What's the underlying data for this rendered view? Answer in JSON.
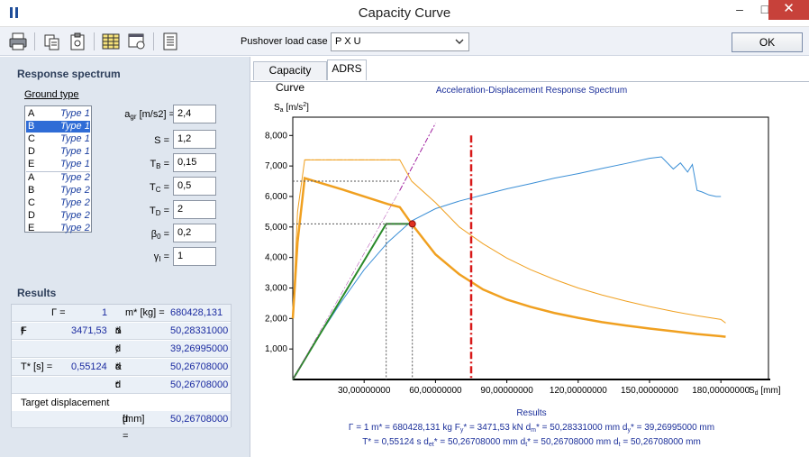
{
  "window": {
    "title": "Capacity Curve",
    "minimize": "–",
    "maximize": "□",
    "close": "✕"
  },
  "toolbar": {
    "icons": [
      "printer-icon",
      "copy-icon",
      "clipboard-icon",
      "table-icon",
      "image-export-icon",
      "report-icon"
    ],
    "pushover_label": "Pushover load case",
    "pushover_value": "P X U",
    "ok_label": "OK"
  },
  "response_spectrum": {
    "title": "Response spectrum",
    "ground_type_label": "Ground type",
    "ground_types": [
      {
        "code": "A",
        "type": "Type 1"
      },
      {
        "code": "B",
        "type": "Type 1"
      },
      {
        "code": "C",
        "type": "Type 1"
      },
      {
        "code": "D",
        "type": "Type 1"
      },
      {
        "code": "E",
        "type": "Type 1"
      },
      {
        "code": "A",
        "type": "Type 2"
      },
      {
        "code": "B",
        "type": "Type 2"
      },
      {
        "code": "C",
        "type": "Type 2"
      },
      {
        "code": "D",
        "type": "Type 2"
      },
      {
        "code": "E",
        "type": "Type 2"
      }
    ],
    "selected_index": 1,
    "params": {
      "agr": {
        "label": "a",
        "sub": "gr",
        "unit": "[m/s2] =",
        "value": "2,4"
      },
      "S": {
        "label": "S =",
        "value": "1,2"
      },
      "TB": {
        "label": "T",
        "sub": "B",
        "eq": " =",
        "value": "0,15"
      },
      "TC": {
        "label": "T",
        "sub": "C",
        "eq": " =",
        "value": "0,5"
      },
      "TD": {
        "label": "T",
        "sub": "D",
        "eq": " =",
        "value": "2"
      },
      "beta0": {
        "label": "β",
        "sub": "0",
        "eq": " =",
        "value": "0,2"
      },
      "gammaI": {
        "label": "γ",
        "sub": "I",
        "eq": " =",
        "value": "1"
      }
    }
  },
  "results": {
    "title": "Results",
    "gamma_label": "Γ =",
    "gamma_value": "1",
    "m_label": "m* [kg] =",
    "m_value": "680428,131",
    "fy_label": "F",
    "fy_sub": "y",
    "fy_unit": "* [kN] =",
    "fy_value": "3471,53",
    "dm_label": "d",
    "dm_sub": "m",
    "dm_unit": "* [mm] =",
    "dm_value": "50,28331000",
    "dy_label": "d",
    "dy_sub": "y",
    "dy_unit": "* [mm] =",
    "dy_value": "39,26995000",
    "T_label": "T* [s] =",
    "T_value": "0,55124",
    "det_label": "d",
    "det_sub": "et",
    "det_unit": "* [mm] =",
    "det_value": "50,26708000",
    "dt_star_label": "d",
    "dt_star_sub": "t",
    "dt_star_unit": "* [mm] =",
    "dt_star_value": "50,26708000",
    "target_label": "Target displacement",
    "dt_label": "d",
    "dt_sub": "t",
    "dt_unit": " [mm] =",
    "dt_value": "50,26708000"
  },
  "tabs": [
    {
      "label": "Capacity Curve",
      "active": false
    },
    {
      "label": "ADRS",
      "active": true
    }
  ],
  "chart_data": {
    "type": "line",
    "title": "Acceleration-Displacement Response Spectrum",
    "xlabel": "S",
    "xlabel_sub": "d",
    "xlabel_unit": " [mm]",
    "ylabel": "S",
    "ylabel_sub": "a",
    "ylabel_unit": " [m/s",
    "ylabel_sup": "2",
    "ylabel_close": "]",
    "xlim": [
      0,
      200
    ],
    "ylim": [
      0,
      8.6
    ],
    "x_ticks": [
      {
        "v": 30,
        "label": "30,00000000"
      },
      {
        "v": 60,
        "label": "60,00000000"
      },
      {
        "v": 90,
        "label": "90,00000000"
      },
      {
        "v": 120,
        "label": "120,00000000"
      },
      {
        "v": 150,
        "label": "150,00000000"
      },
      {
        "v": 180,
        "label": "180,00000000"
      }
    ],
    "y_ticks": [
      {
        "v": 1,
        "label": "1,000"
      },
      {
        "v": 2,
        "label": "2,000"
      },
      {
        "v": 3,
        "label": "3,000"
      },
      {
        "v": 4,
        "label": "4,000"
      },
      {
        "v": 5,
        "label": "5,000"
      },
      {
        "v": 6,
        "label": "6,000"
      },
      {
        "v": 7,
        "label": "7,000"
      },
      {
        "v": 8,
        "label": "8,000"
      }
    ],
    "series": [
      {
        "kind": "capacity",
        "color": "#3b8fd6",
        "x": [
          0,
          10,
          20,
          30,
          40,
          50,
          60,
          70,
          80,
          90,
          100,
          110,
          120,
          130,
          140,
          150,
          155,
          160,
          163,
          166,
          168,
          170,
          172,
          175,
          178,
          180
        ],
        "y": [
          0,
          1.3,
          2.5,
          3.6,
          4.5,
          5.2,
          5.6,
          5.85,
          6.05,
          6.25,
          6.42,
          6.6,
          6.75,
          6.92,
          7.08,
          7.25,
          7.3,
          6.9,
          7.1,
          6.8,
          7.05,
          6.2,
          6.15,
          6.05,
          6.0,
          6.0
        ]
      },
      {
        "kind": "spectrum-elastic",
        "color": "#f0a020",
        "x": [
          0,
          2,
          5,
          20,
          40,
          45,
          50,
          55,
          60,
          70,
          80,
          90,
          100,
          110,
          120,
          130,
          140,
          150,
          160,
          170,
          180,
          182
        ],
        "y": [
          2.0,
          4.5,
          6.6,
          6.25,
          5.75,
          5.65,
          5.1,
          4.6,
          4.1,
          3.45,
          2.95,
          2.62,
          2.38,
          2.18,
          2.02,
          1.88,
          1.77,
          1.67,
          1.58,
          1.49,
          1.42,
          1.4
        ]
      },
      {
        "kind": "spectrum-design",
        "color": "#f0a020",
        "x": [
          0,
          2,
          5,
          20,
          45,
          50,
          60,
          70,
          80,
          90,
          100,
          110,
          120,
          130,
          140,
          150,
          160,
          170,
          180,
          182
        ],
        "y": [
          2.0,
          5.5,
          7.2,
          7.2,
          7.2,
          6.5,
          5.8,
          5.0,
          4.45,
          3.98,
          3.6,
          3.28,
          3.0,
          2.77,
          2.57,
          2.39,
          2.23,
          2.09,
          1.97,
          1.85
        ]
      },
      {
        "kind": "bilinear",
        "color": "#2a8a2a",
        "x": [
          0,
          39.26995,
          50.28331
        ],
        "y": [
          0,
          5.1,
          5.1
        ]
      }
    ],
    "target_displacement": 50.26708,
    "performance_point": {
      "x": 50.26708,
      "y": 5.1
    },
    "limit_line_x": 75,
    "period_line": {
      "x": [
        45,
        60
      ],
      "y": [
        6.2,
        8.4
      ]
    }
  },
  "footer": {
    "title": "Results",
    "line1": [
      "Γ = 1",
      "m* = 680428,131 kg",
      "F",
      "y",
      "* = 3471,53 kN",
      "d",
      "m",
      "* = 50,28331000 mm",
      "d",
      "y",
      "* = 39,26995000 mm"
    ],
    "line2": [
      "T* = 0,55124 s",
      "d",
      "et",
      "* = 50,26708000 mm",
      "d",
      "t",
      "* = 50,26708000 mm",
      "d",
      "t",
      " = 50,26708000 mm"
    ]
  }
}
